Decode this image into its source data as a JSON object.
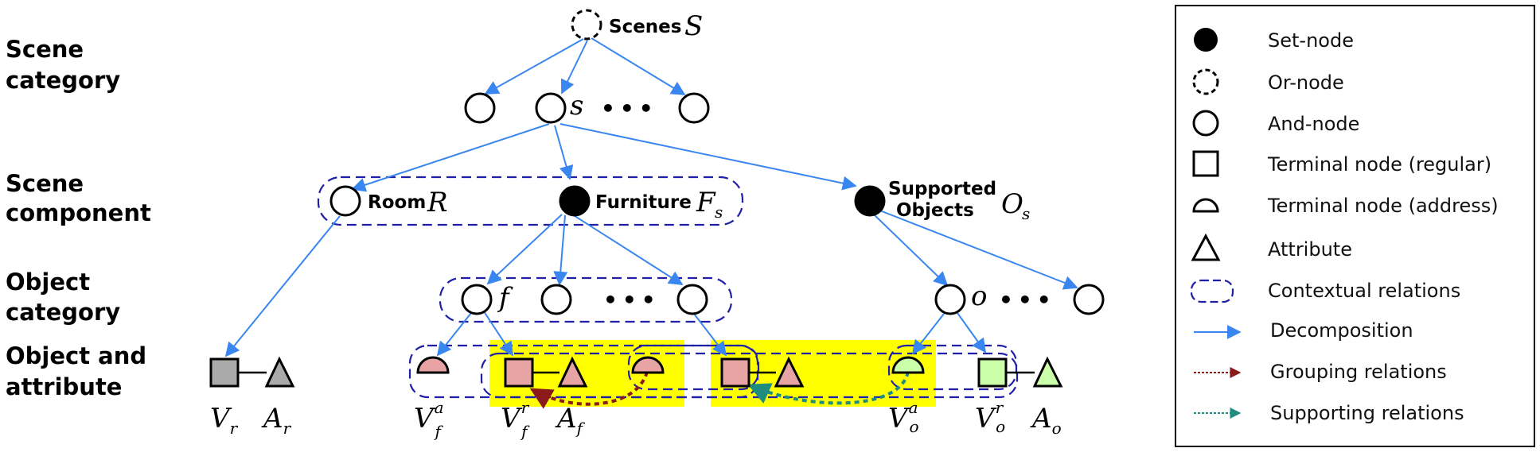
{
  "levels": {
    "scene_category": [
      "Scene",
      "category"
    ],
    "scene_component": [
      "Scene",
      "component"
    ],
    "object_category": [
      "Object",
      "category"
    ],
    "object_attribute": [
      "Object and",
      "attribute"
    ]
  },
  "nodes": {
    "scenes_label": "Scenes",
    "scenes_symbol": "S",
    "s_symbol": "s",
    "ellipsis": "•••",
    "room_label": "Room",
    "room_symbol": "R",
    "furniture_label": "Furniture",
    "furniture_symbol": "F",
    "furniture_sub": "s",
    "supported_label": [
      "Supported",
      "Objects"
    ],
    "supported_symbol": "O",
    "supported_sub": "s",
    "f_symbol": "f",
    "o_symbol": "o"
  },
  "terminals": {
    "Vr": {
      "base": "V",
      "sub": "r"
    },
    "Ar": {
      "base": "A",
      "sub": "r"
    },
    "Vfa": {
      "base": "V",
      "sub": "f",
      "sup": "a"
    },
    "Vfr": {
      "base": "V",
      "sub": "f",
      "sup": "r"
    },
    "Af": {
      "base": "A",
      "sub": "f"
    },
    "Voa": {
      "base": "V",
      "sub": "o",
      "sup": "a"
    },
    "Vor": {
      "base": "V",
      "sub": "o",
      "sup": "r"
    },
    "Ao": {
      "base": "A",
      "sub": "o"
    }
  },
  "legend": {
    "items": [
      {
        "label": "Set-node",
        "icon": "filled-circle-icon"
      },
      {
        "label": "Or-node",
        "icon": "dashed-circle-icon"
      },
      {
        "label": "And-node",
        "icon": "circle-icon"
      },
      {
        "label": "Terminal node (regular)",
        "icon": "square-icon"
      },
      {
        "label": "Terminal node (address)",
        "icon": "half-circle-icon"
      },
      {
        "label": "Attribute",
        "icon": "triangle-icon"
      },
      {
        "label": "Contextual relations",
        "icon": "dashed-rounded-rect-icon"
      },
      {
        "label": "Decomposition",
        "icon": "blue-arrow-icon"
      },
      {
        "label": "Grouping relations",
        "icon": "red-dotted-arrow-icon"
      },
      {
        "label": "Supporting relations",
        "icon": "teal-dotted-arrow-icon"
      }
    ]
  },
  "colors": {
    "decomposition": "#3a86f0",
    "grouping": "#8b1a1a",
    "supporting": "#1e8c7e",
    "contextual": "#1f1fa8",
    "highlight": "#ffff00",
    "furniture_fill": "#e8a4a4",
    "object_fill": "#ccffaa",
    "room_fill": "#aaaaaa"
  }
}
